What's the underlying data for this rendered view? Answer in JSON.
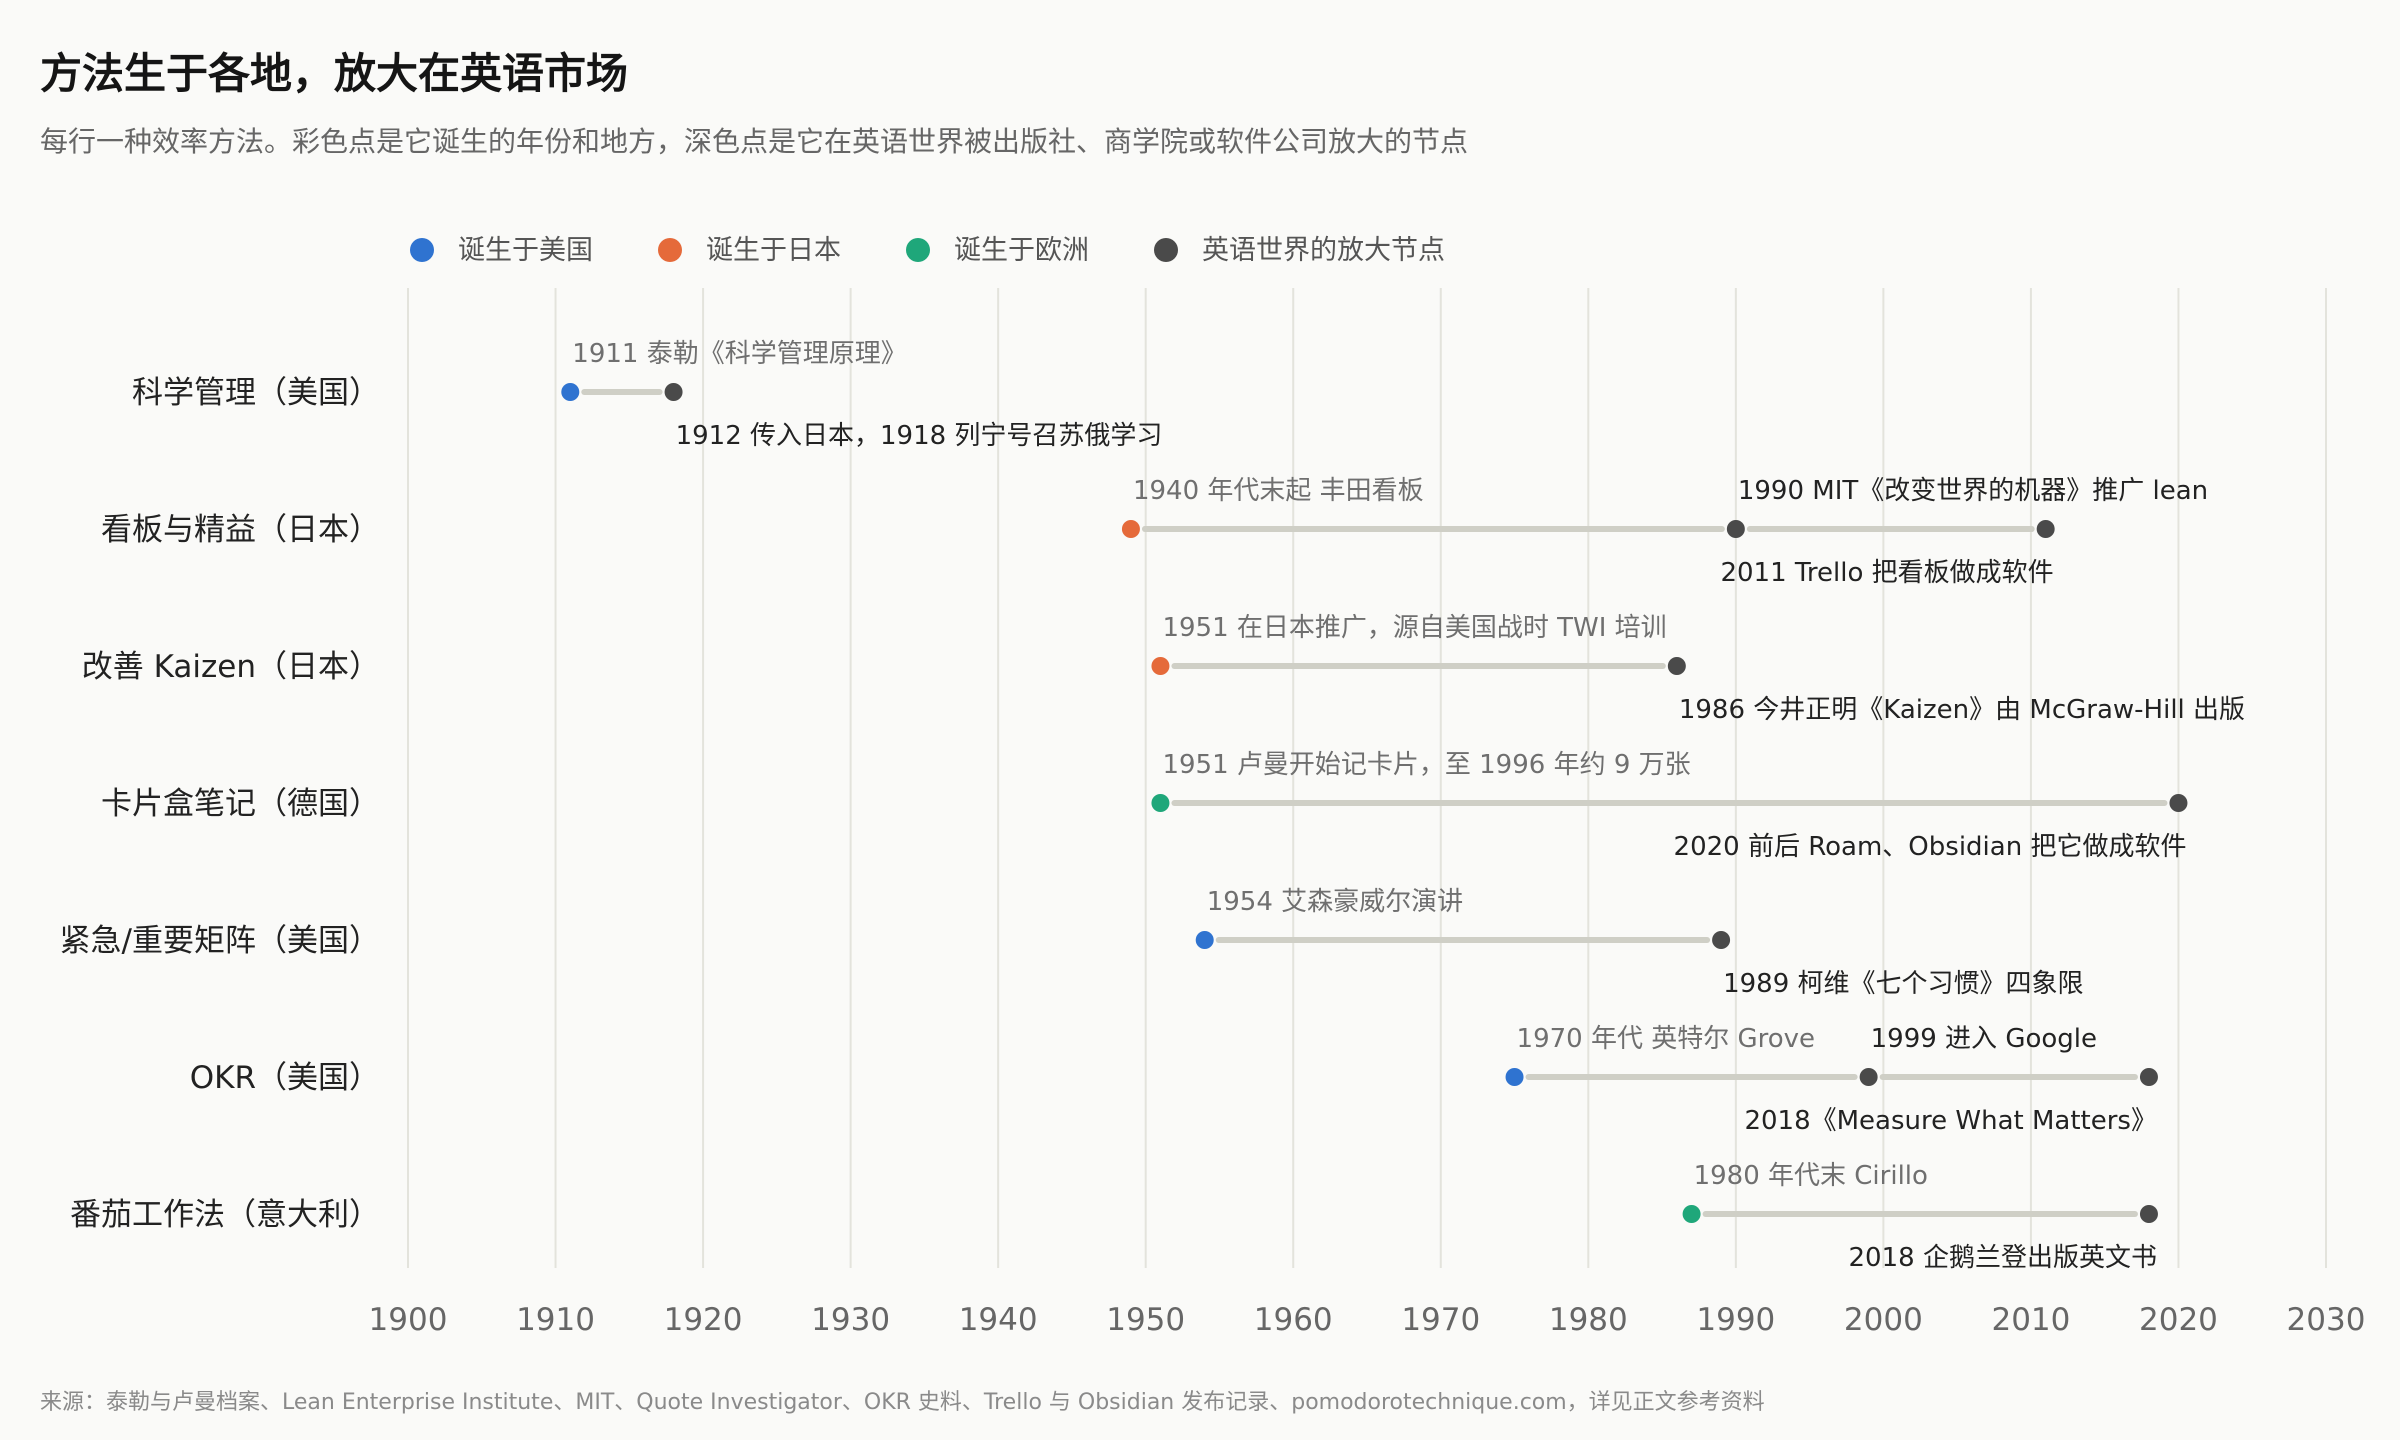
{
  "title": "方法生于各地，放大在英语市场",
  "subtitle": "每行一种效率方法。彩色点是它诞生的年份和地方，深色点是它在英语世界被出版社、商学院或软件公司放大的节点",
  "source": "来源：泰勒与卢曼档案、Lean Enterprise Institute、MIT、Quote Investigator、OKR 史料、Trello 与 Obsidian 发布记录、pomodorotechnique.com，详见正文参考资料",
  "colors": {
    "usa": "#2f73d0",
    "japan": "#e56a3a",
    "europe": "#1fa77a",
    "amplify": "#4a4a4a",
    "connector": "#cfcfc6",
    "grid": "#e3e3dc"
  },
  "chart_data": {
    "type": "dumbbell",
    "xlim": [
      1900,
      2030
    ],
    "xticks": [
      1900,
      1910,
      1920,
      1930,
      1940,
      1950,
      1960,
      1970,
      1980,
      1990,
      2000,
      2010,
      2020,
      2030
    ],
    "grid": "vertical",
    "legend_position": "top",
    "legend": [
      {
        "key": "usa",
        "label": "诞生于美国"
      },
      {
        "key": "japan",
        "label": "诞生于日本"
      },
      {
        "key": "europe",
        "label": "诞生于欧洲"
      },
      {
        "key": "amplify",
        "label": "英语世界的放大节点"
      }
    ],
    "rows": [
      {
        "label": "科学管理（美国）",
        "origin": {
          "year": 1911,
          "region": "usa",
          "note": "1911 泰勒《科学管理原理》"
        },
        "amplifications": [
          {
            "year": 1918,
            "note": "1912 传入日本，1918 列宁号召苏俄学习",
            "note_pos": "below-left"
          }
        ]
      },
      {
        "label": "看板与精益（日本）",
        "origin": {
          "year": 1949,
          "region": "japan",
          "note": "1940 年代末起 丰田看板"
        },
        "amplifications": [
          {
            "year": 1990,
            "note": "1990 MIT《改变世界的机器》推广 lean",
            "note_pos": "above-left"
          },
          {
            "year": 2011,
            "note": "2011 Trello 把看板做成软件",
            "note_pos": "below-end"
          }
        ]
      },
      {
        "label": "改善 Kaizen（日本）",
        "origin": {
          "year": 1951,
          "region": "japan",
          "note": "1951 在日本推广，源自美国战时 TWI 培训"
        },
        "amplifications": [
          {
            "year": 1986,
            "note": "1986 今井正明《Kaizen》由 McGraw-Hill 出版",
            "note_pos": "below-left"
          }
        ]
      },
      {
        "label": "卡片盒笔记（德国）",
        "origin": {
          "year": 1951,
          "region": "europe",
          "note": "1951 卢曼开始记卡片，至 1996 年约 9 万张"
        },
        "amplifications": [
          {
            "year": 2020,
            "note": "2020 前后 Roam、Obsidian 把它做成软件",
            "note_pos": "below-end"
          }
        ]
      },
      {
        "label": "紧急/重要矩阵（美国）",
        "origin": {
          "year": 1954,
          "region": "usa",
          "note": "1954 艾森豪威尔演讲"
        },
        "amplifications": [
          {
            "year": 1989,
            "note": "1989 柯维《七个习惯》四象限",
            "note_pos": "below-left"
          }
        ]
      },
      {
        "label": "OKR（美国）",
        "origin": {
          "year": 1975,
          "region": "usa",
          "note": "1970 年代 英特尔 Grove"
        },
        "amplifications": [
          {
            "year": 1999,
            "note": "1999 进入 Google",
            "note_pos": "above-left"
          },
          {
            "year": 2018,
            "note": "2018《Measure What Matters》",
            "note_pos": "below-end"
          }
        ]
      },
      {
        "label": "番茄工作法（意大利）",
        "origin": {
          "year": 1987,
          "region": "europe",
          "note": "1980 年代末 Cirillo"
        },
        "amplifications": [
          {
            "year": 2018,
            "note": "2018 企鹅兰登出版英文书",
            "note_pos": "below-end"
          }
        ]
      }
    ]
  }
}
